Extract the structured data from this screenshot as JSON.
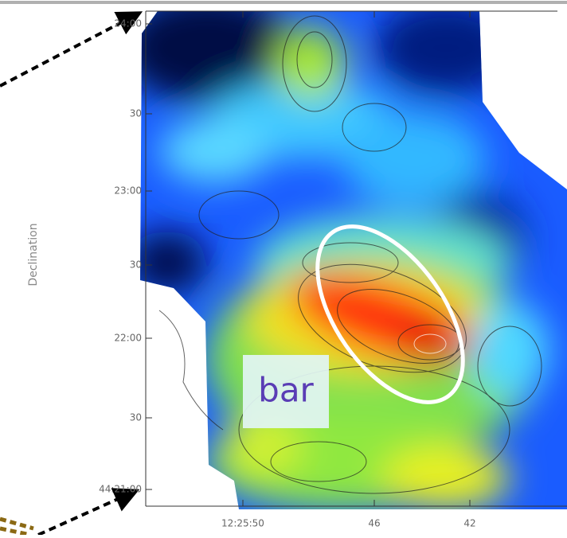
{
  "figure": {
    "y_axis": {
      "label": "Declination",
      "ticks": [
        "24:00",
        "30",
        "23:00",
        "30",
        "22:00",
        "30",
        "44:21:00"
      ]
    },
    "x_axis": {
      "ticks": [
        "12:25:50",
        "46",
        "42"
      ]
    },
    "annotation": "bar"
  }
}
